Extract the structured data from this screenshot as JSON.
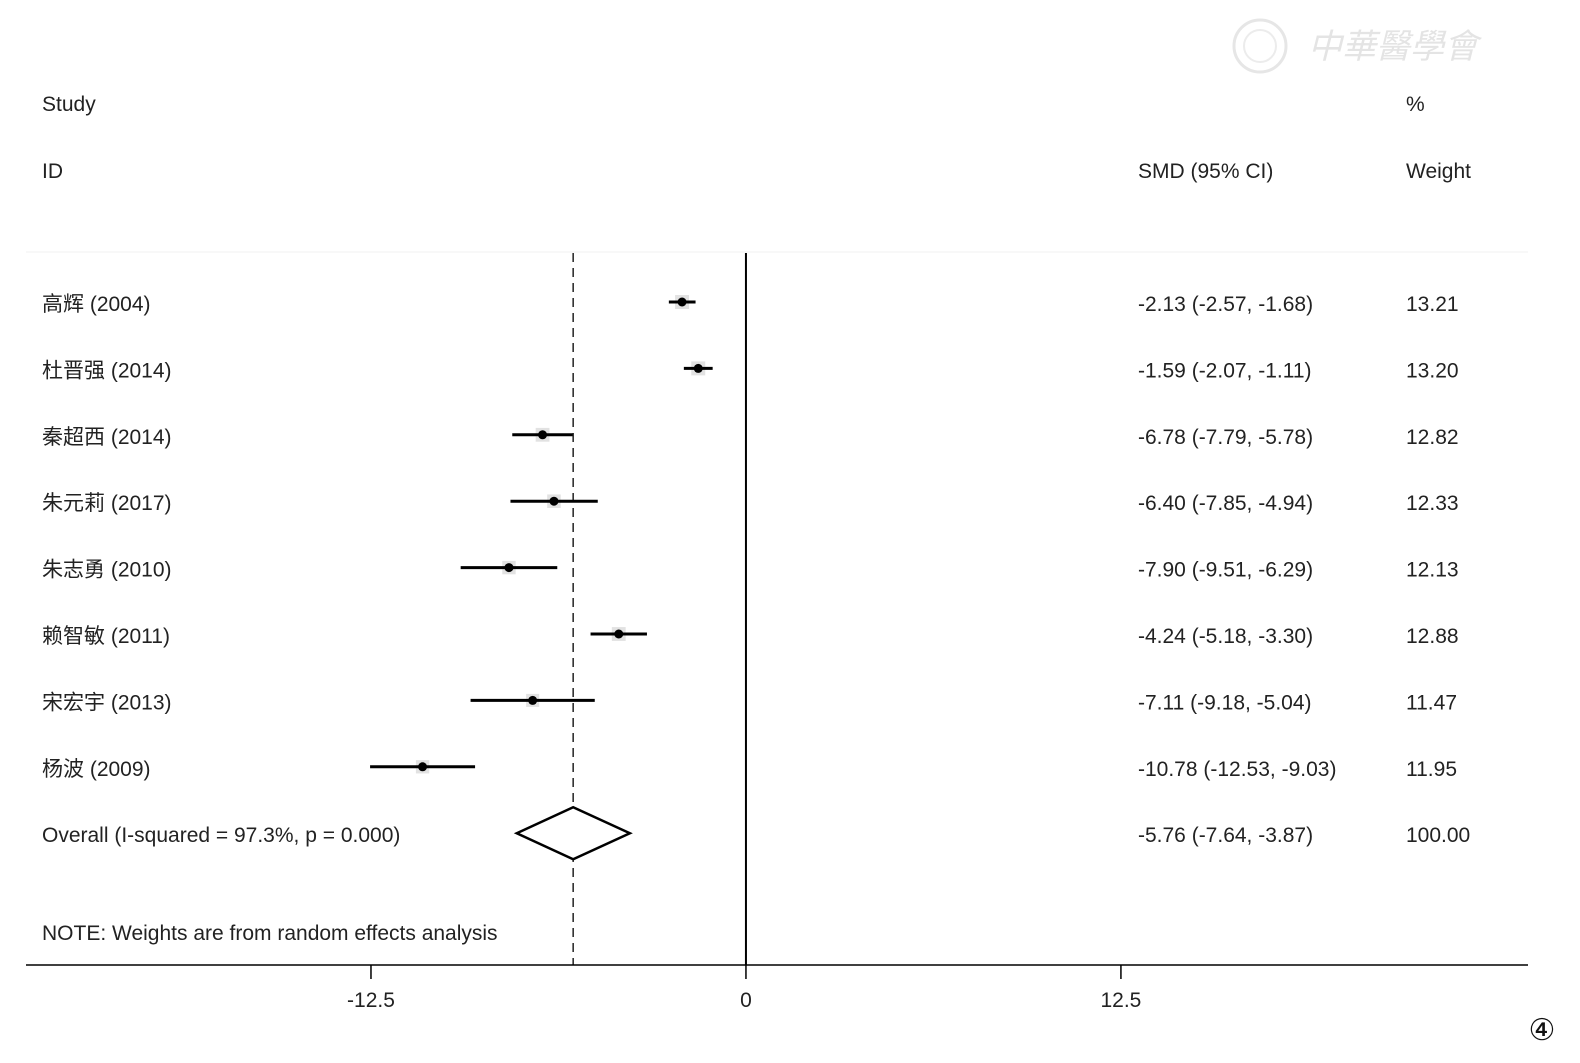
{
  "chart_data": {
    "type": "forest",
    "header": {
      "study": "Study",
      "id": "ID",
      "effect": "SMD (95% CI)",
      "weight_unit": "%",
      "weight": "Weight"
    },
    "studies": [
      {
        "label": "高辉 (2004)",
        "smd": -2.13,
        "lo": -2.57,
        "hi": -1.68,
        "ci_text": "-2.13 (-2.57, -1.68)",
        "weight": 13.21,
        "weight_text": "13.21"
      },
      {
        "label": "杜晋强 (2014)",
        "smd": -1.59,
        "lo": -2.07,
        "hi": -1.11,
        "ci_text": "-1.59 (-2.07, -1.11)",
        "weight": 13.2,
        "weight_text": "13.20"
      },
      {
        "label": "秦超西 (2014)",
        "smd": -6.78,
        "lo": -7.79,
        "hi": -5.78,
        "ci_text": "-6.78 (-7.79, -5.78)",
        "weight": 12.82,
        "weight_text": "12.82"
      },
      {
        "label": "朱元莉 (2017)",
        "smd": -6.4,
        "lo": -7.85,
        "hi": -4.94,
        "ci_text": "-6.40 (-7.85, -4.94)",
        "weight": 12.33,
        "weight_text": "12.33"
      },
      {
        "label": "朱志勇 (2010)",
        "smd": -7.9,
        "lo": -9.51,
        "hi": -6.29,
        "ci_text": "-7.90 (-9.51, -6.29)",
        "weight": 12.13,
        "weight_text": "12.13"
      },
      {
        "label": "赖智敏 (2011)",
        "smd": -4.24,
        "lo": -5.18,
        "hi": -3.3,
        "ci_text": "-4.24 (-5.18, -3.30)",
        "weight": 12.88,
        "weight_text": "12.88"
      },
      {
        "label": "宋宏宇 (2013)",
        "smd": -7.11,
        "lo": -9.18,
        "hi": -5.04,
        "ci_text": "-7.11 (-9.18, -5.04)",
        "weight": 11.47,
        "weight_text": "11.47"
      },
      {
        "label": "杨波 (2009)",
        "smd": -10.78,
        "lo": -12.53,
        "hi": -9.03,
        "ci_text": "-10.78 (-12.53, -9.03)",
        "weight": 11.95,
        "weight_text": "11.95"
      }
    ],
    "overall": {
      "label": "Overall  (I-squared = 97.3%, p = 0.000)",
      "smd": -5.76,
      "lo": -7.64,
      "hi": -3.87,
      "ci_text": "-5.76 (-7.64, -3.87)",
      "weight": 100.0,
      "weight_text": "100.00"
    },
    "note": "NOTE: Weights are from random effects analysis",
    "x_ticks": [
      -12.5,
      0,
      12.5
    ],
    "x_tick_labels": [
      "-12.5",
      "0",
      "12.5"
    ],
    "xlim": [
      -24.0,
      26.07
    ],
    "null_line": 0
  },
  "watermark": "中華醫學會",
  "figure_marker": "④"
}
